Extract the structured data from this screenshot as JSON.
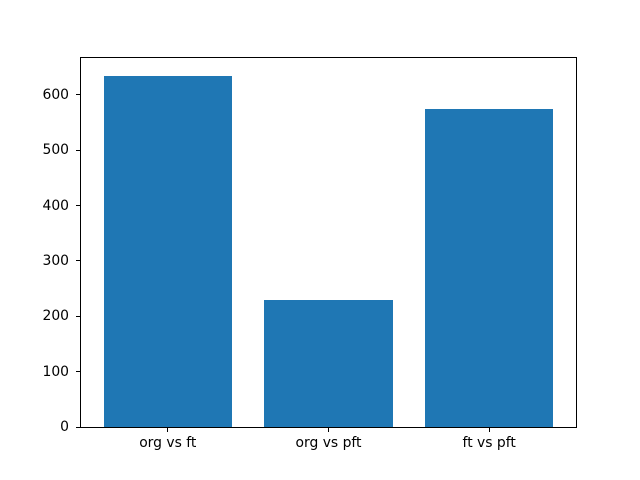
{
  "figure": {
    "background": "#ffffff",
    "spine_color": "#000000",
    "text_color": "#000000"
  },
  "chart_data": {
    "type": "bar",
    "title": "",
    "xlabel": "",
    "ylabel": "",
    "categories": [
      "org vs ft",
      "org vs pft",
      "ft vs pft"
    ],
    "values": [
      635,
      230,
      575
    ],
    "bar_color": "#1f77b4",
    "bar_width": 0.8,
    "yticks": [
      0,
      100,
      200,
      300,
      400,
      500,
      600
    ],
    "ylim": [
      0,
      666.75
    ],
    "xlim": [
      -0.54,
      2.54
    ],
    "grid": false,
    "legend": null
  }
}
